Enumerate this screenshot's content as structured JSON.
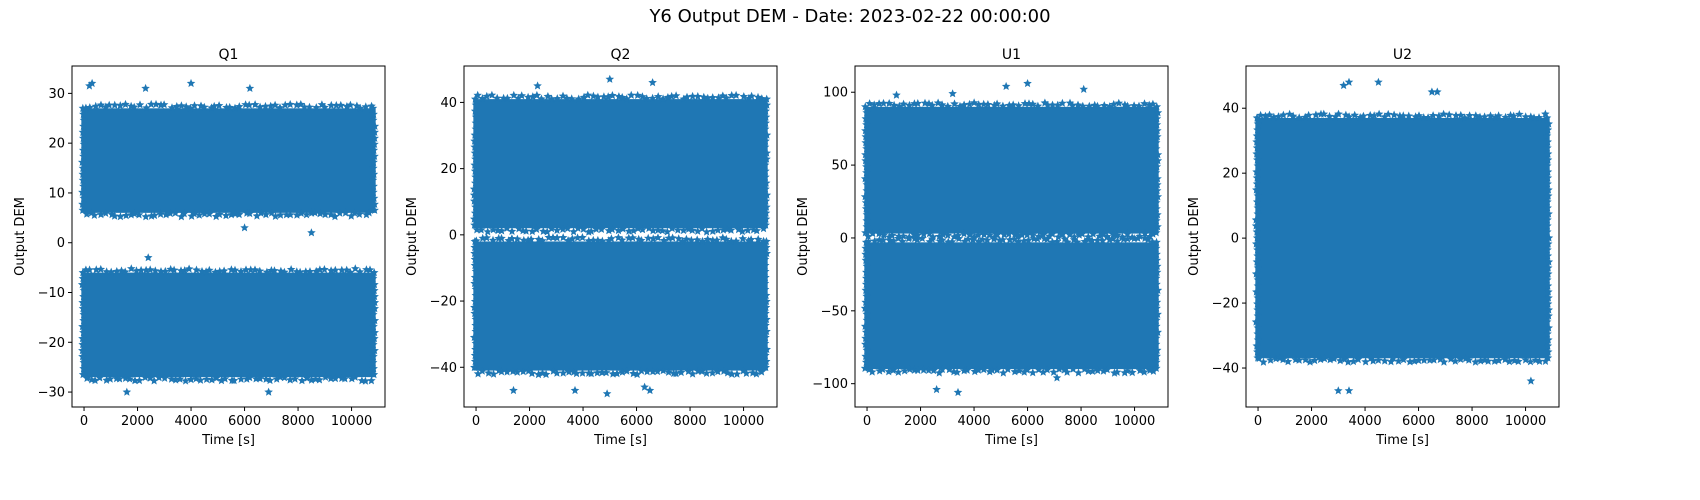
{
  "figure": {
    "title": "Y6 Output DEM - Date: 2023-02-22 00:00:00"
  },
  "style": {
    "marker_color": "#1f77b4",
    "marker": "star"
  },
  "chart_data": [
    {
      "type": "scatter",
      "title": "Q1",
      "xlabel": "Time [s]",
      "ylabel": "Output DEM",
      "xlim": [
        -450,
        11250
      ],
      "ylim": [
        -33,
        35.5
      ],
      "xticks": [
        0,
        2000,
        4000,
        6000,
        8000,
        10000
      ],
      "yticks": [
        -30,
        -20,
        -10,
        0,
        10,
        20,
        30
      ],
      "x_range": [
        0,
        10800
      ],
      "bands": [
        [
          -27,
          -6
        ],
        [
          6,
          27
        ]
      ],
      "series": [
        {
          "x": [
            200,
            300,
            2300,
            4000,
            6000,
            6200,
            8500,
            1600,
            2400,
            6900
          ],
          "y": [
            31.5,
            32,
            31,
            32,
            3,
            31,
            2,
            -30,
            -3,
            -30
          ]
        }
      ]
    },
    {
      "type": "scatter",
      "title": "Q2",
      "xlabel": "Time [s]",
      "ylabel": "Output DEM",
      "xlim": [
        -450,
        11250
      ],
      "ylim": [
        -52,
        51
      ],
      "xticks": [
        0,
        2000,
        4000,
        6000,
        8000,
        10000
      ],
      "yticks": [
        -40,
        -20,
        0,
        20,
        40
      ],
      "x_range": [
        0,
        10800
      ],
      "bands": [
        [
          -41,
          -2
        ],
        [
          2,
          41
        ]
      ],
      "series": [
        {
          "x": [
            5000,
            6600,
            2300,
            1400,
            3700,
            4900,
            6300,
            6500
          ],
          "y": [
            47,
            46,
            45,
            -47,
            -47,
            -48,
            -46,
            -47
          ]
        }
      ]
    },
    {
      "type": "scatter",
      "title": "U1",
      "xlabel": "Time [s]",
      "ylabel": "Output DEM",
      "xlim": [
        -450,
        11250
      ],
      "ylim": [
        -116,
        118
      ],
      "xticks": [
        0,
        2000,
        4000,
        6000,
        8000,
        10000
      ],
      "yticks": [
        -100,
        -50,
        0,
        50,
        100
      ],
      "x_range": [
        0,
        10800
      ],
      "bands": [
        [
          -90,
          -3
        ],
        [
          3,
          90
        ]
      ],
      "series": [
        {
          "x": [
            6000,
            5200,
            8100,
            3200,
            2600,
            3400,
            7100,
            1100
          ],
          "y": [
            106,
            104,
            102,
            99,
            -104,
            -106,
            -96,
            98
          ]
        }
      ]
    },
    {
      "type": "scatter",
      "title": "U2",
      "xlabel": "Time [s]",
      "ylabel": "Output DEM",
      "xlim": [
        -450,
        11250
      ],
      "ylim": [
        -52,
        53
      ],
      "xticks": [
        0,
        2000,
        4000,
        6000,
        8000,
        10000
      ],
      "yticks": [
        -40,
        -20,
        0,
        20,
        40
      ],
      "x_range": [
        0,
        10800
      ],
      "bands": [
        [
          -37,
          37
        ]
      ],
      "series": [
        {
          "x": [
            3400,
            4500,
            3200,
            6500,
            3000,
            3400,
            10200,
            6700
          ],
          "y": [
            48,
            48,
            47,
            45,
            -47,
            -47,
            -44,
            45
          ]
        }
      ]
    }
  ]
}
